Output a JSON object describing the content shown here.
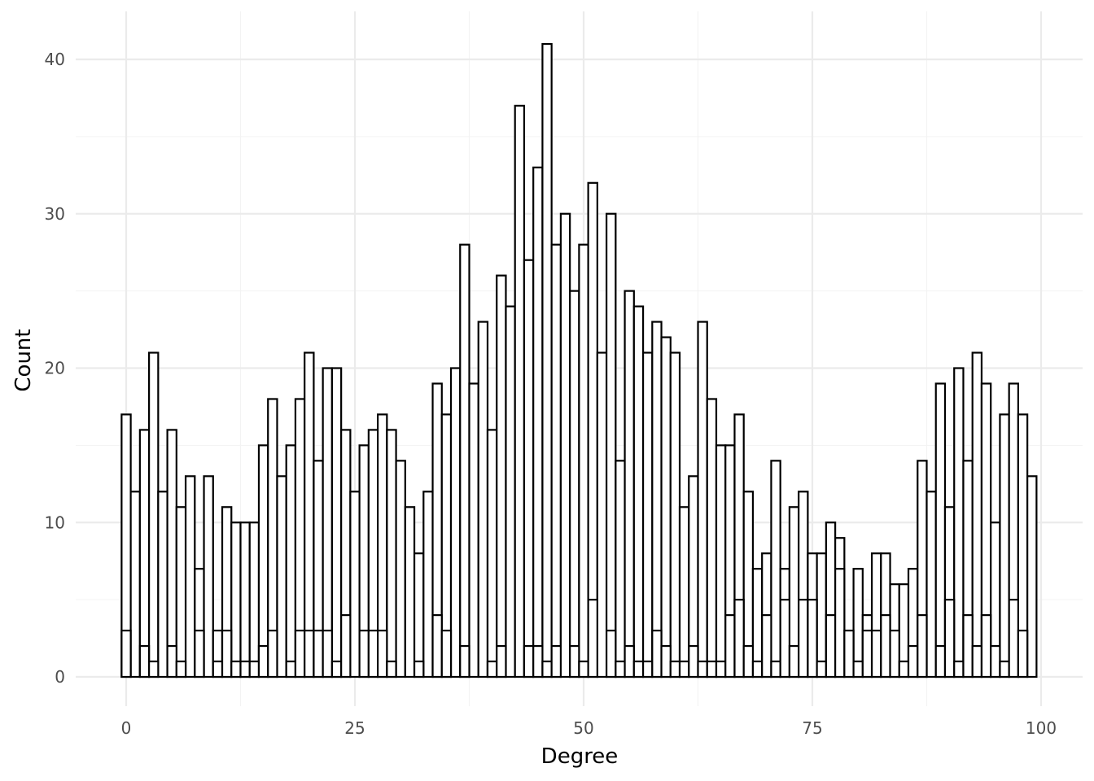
{
  "chart_data": {
    "type": "bar",
    "title": "",
    "xlabel": "Degree",
    "ylabel": "Count",
    "xlim": [
      -5,
      103
    ],
    "ylim": [
      -2,
      41
    ],
    "x_ticks": [
      0,
      25,
      50,
      75,
      100
    ],
    "x_tick_labels": [
      "0",
      "25",
      "50",
      "75",
      "100"
    ],
    "y_ticks": [
      0,
      10,
      20,
      30,
      40
    ],
    "y_tick_labels": [
      "0",
      "10",
      "20",
      "30",
      "40"
    ],
    "grid": true,
    "legend": "none",
    "bar_width": 1,
    "series": [
      {
        "x": [
          0,
          1,
          2,
          3,
          4,
          5,
          6,
          7,
          8,
          9,
          10,
          11,
          12,
          13,
          14,
          15,
          16,
          17,
          18,
          19,
          20,
          21,
          22,
          23,
          24,
          25,
          26,
          27,
          28,
          29,
          30,
          31,
          32,
          33,
          34,
          35,
          36,
          37,
          38,
          39,
          40,
          41,
          42,
          43,
          44,
          45,
          46,
          47,
          48,
          49,
          50,
          51,
          52,
          53,
          54,
          55,
          56,
          57,
          58,
          59,
          60,
          61,
          62,
          63,
          64,
          65,
          66,
          67,
          68,
          69,
          70,
          71,
          72,
          73,
          74,
          75,
          76,
          77,
          78,
          79,
          80,
          81,
          82,
          83,
          84,
          85,
          86,
          87,
          88,
          89,
          90,
          91,
          92,
          93,
          94,
          95,
          96,
          97,
          98,
          99
        ],
        "values": [
          17,
          12,
          16,
          21,
          12,
          16,
          11,
          13,
          7,
          13,
          3,
          11,
          10,
          10,
          10,
          15,
          18,
          13,
          15,
          18,
          21,
          14,
          20,
          20,
          16,
          12,
          15,
          16,
          17,
          16,
          14,
          11,
          8,
          12,
          19,
          17,
          20,
          28,
          19,
          23,
          16,
          26,
          24,
          37,
          27,
          33,
          41,
          28,
          30,
          25,
          28,
          32,
          21,
          30,
          14,
          25,
          24,
          21,
          23,
          22,
          21,
          11,
          13,
          23,
          18,
          15,
          15,
          17,
          12,
          7,
          8,
          14,
          7,
          11,
          12,
          8,
          8,
          10,
          9,
          3,
          7,
          4,
          8,
          8,
          6,
          6,
          7,
          14,
          12,
          19,
          11,
          20,
          14,
          21,
          19,
          10,
          17,
          19,
          17,
          13
        ]
      },
      {
        "x": [
          0,
          1,
          2,
          3,
          4,
          5,
          6,
          7,
          8,
          9,
          10,
          11,
          12,
          13,
          14,
          15,
          16,
          17,
          18,
          19,
          20,
          21,
          22,
          23,
          24,
          25,
          26,
          27,
          28,
          29,
          30,
          31,
          32,
          33,
          34,
          35,
          36,
          37,
          38,
          39,
          40,
          41,
          42,
          43,
          44,
          45,
          46,
          47,
          48,
          49,
          50,
          51,
          52,
          53,
          54,
          55,
          56,
          57,
          58,
          59,
          60,
          61,
          62,
          63,
          64,
          65,
          66,
          67,
          68,
          69,
          70,
          71,
          72,
          73,
          74,
          75,
          76,
          77,
          78,
          79,
          80,
          81,
          82,
          83,
          84,
          85,
          86,
          87,
          88,
          89,
          90,
          91,
          92,
          93,
          94,
          95,
          96,
          97,
          98,
          99
        ],
        "values": [
          3,
          0,
          2,
          1,
          0,
          2,
          1,
          0,
          3,
          0,
          1,
          3,
          1,
          1,
          1,
          2,
          3,
          0,
          1,
          3,
          3,
          3,
          3,
          1,
          4,
          0,
          3,
          3,
          3,
          1,
          0,
          0,
          1,
          0,
          4,
          3,
          0,
          2,
          0,
          0,
          1,
          2,
          0,
          0,
          2,
          2,
          1,
          2,
          0,
          2,
          1,
          5,
          0,
          3,
          1,
          2,
          1,
          1,
          3,
          2,
          1,
          1,
          2,
          1,
          1,
          1,
          4,
          5,
          2,
          1,
          4,
          1,
          5,
          2,
          5,
          5,
          1,
          4,
          7,
          3,
          1,
          3,
          3,
          4,
          3,
          1,
          2,
          4,
          0,
          2,
          5,
          1,
          4,
          2,
          4,
          2,
          1,
          5,
          3,
          0
        ]
      }
    ]
  }
}
